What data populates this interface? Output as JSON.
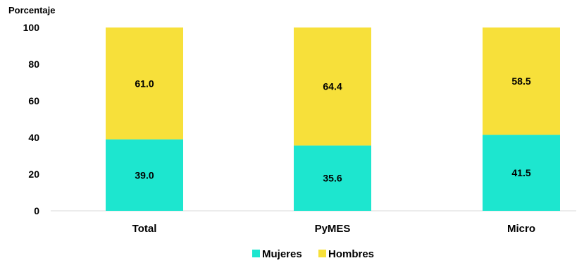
{
  "chart_data": {
    "type": "bar",
    "stacked": true,
    "ylabel": "Porcentaje",
    "ylim": [
      0,
      100
    ],
    "yticks": [
      "0",
      "20",
      "40",
      "60",
      "80",
      "100"
    ],
    "categories": [
      "Total",
      "PyMES",
      "Micro"
    ],
    "series": [
      {
        "name": "Mujeres",
        "color": "#1de6cf",
        "values": [
          39.0,
          35.6,
          41.5
        ],
        "labels": [
          "39.0",
          "35.6",
          "41.5"
        ]
      },
      {
        "name": "Hombres",
        "color": "#f7e03a",
        "values": [
          61.0,
          64.4,
          58.5
        ],
        "labels": [
          "61.0",
          "64.4",
          "58.5"
        ]
      }
    ],
    "legend_position": "bottom"
  }
}
